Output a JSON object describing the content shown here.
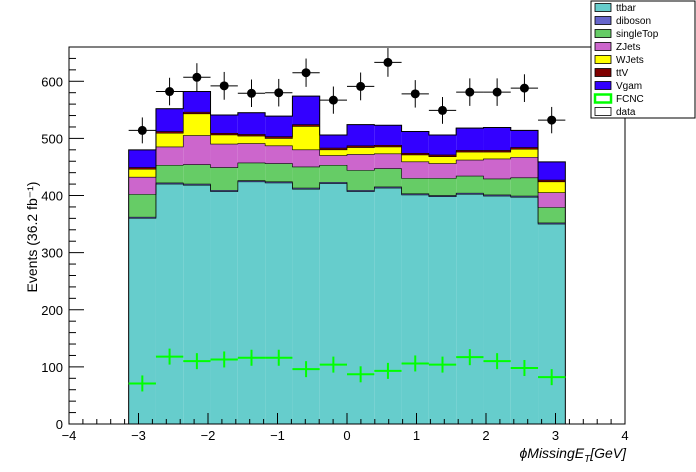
{
  "chart_data": {
    "type": "bar",
    "stacked": true,
    "xlabel": "ϕMissingE_{T}[GeV]",
    "ylabel": "Events (36.2 fb⁻¹)",
    "xlim": [
      -4,
      4
    ],
    "ylim": [
      0,
      660
    ],
    "x_ticks": [
      -4,
      -3,
      -2,
      -1,
      0,
      1,
      2,
      3,
      4
    ],
    "y_ticks": [
      0,
      100,
      200,
      300,
      400,
      500,
      600
    ],
    "bin_edges": [
      -3.1416,
      -2.7489,
      -2.3562,
      -1.9635,
      -1.5708,
      -1.1781,
      -0.7854,
      -0.3927,
      0.0,
      0.3927,
      0.7854,
      1.1781,
      1.5708,
      1.9635,
      2.3562,
      2.7489,
      3.1416
    ],
    "bin_centers": [
      -2.945,
      -2.553,
      -2.16,
      -1.767,
      -1.374,
      -0.982,
      -0.589,
      -0.196,
      0.196,
      0.589,
      0.982,
      1.374,
      1.767,
      2.16,
      2.553,
      2.945
    ],
    "legend_position": "top-right outside",
    "series": [
      {
        "name": "ttbar",
        "color": "#66cdcc",
        "values": [
          360,
          420,
          418,
          407,
          424,
          422,
          411,
          421,
          407,
          413,
          401,
          398,
          402,
          399,
          397,
          350
        ]
      },
      {
        "name": "diboson",
        "color": "#6666cc",
        "values": [
          2,
          2,
          2,
          2,
          2,
          2,
          2,
          2,
          2,
          2,
          2,
          2,
          2,
          2,
          2,
          2
        ]
      },
      {
        "name": "singleTop",
        "color": "#66cc66",
        "values": [
          40,
          31,
          34,
          40,
          31,
          32,
          37,
          30,
          35,
          32,
          27,
          30,
          30,
          28,
          32,
          27
        ]
      },
      {
        "name": "ZJets",
        "color": "#cc66cc",
        "values": [
          30,
          32,
          51,
          41,
          34,
          31,
          30,
          17,
          28,
          26,
          29,
          26,
          28,
          35,
          36,
          26
        ]
      },
      {
        "name": "WJets",
        "color": "#ffff00",
        "values": [
          14,
          24,
          38,
          16,
          13,
          13,
          41,
          10,
          12,
          12,
          12,
          12,
          14,
          12,
          14,
          19
        ]
      },
      {
        "name": "ttV",
        "color": "#7f0000",
        "values": [
          3,
          3,
          3,
          3,
          3,
          3,
          3,
          3,
          3,
          3,
          3,
          3,
          3,
          3,
          3,
          3
        ]
      },
      {
        "name": "Vgam",
        "color": "#3300ff",
        "values": [
          31,
          40,
          36,
          32,
          38,
          36,
          50,
          23,
          37,
          35,
          38,
          35,
          39,
          40,
          30,
          32
        ]
      }
    ],
    "overlays": [
      {
        "name": "FCNC",
        "color": "#00ff00",
        "values": [
          71,
          118,
          110,
          113,
          116,
          116,
          96,
          104,
          87,
          93,
          106,
          104,
          117,
          110,
          98,
          82
        ]
      },
      {
        "name": "data",
        "color": "#000000",
        "values": [
          514,
          582,
          607,
          592,
          579,
          580,
          615,
          567,
          591,
          633,
          578,
          549,
          581,
          581,
          588,
          532
        ]
      }
    ],
    "legend": [
      {
        "label": "ttbar",
        "fill": "#66cdcc",
        "stroke": "#000000"
      },
      {
        "label": "diboson",
        "fill": "#6666cc",
        "stroke": "#000000"
      },
      {
        "label": "singleTop",
        "fill": "#66cc66",
        "stroke": "#000000"
      },
      {
        "label": "ZJets",
        "fill": "#cc66cc",
        "stroke": "#000000"
      },
      {
        "label": "WJets",
        "fill": "#ffff00",
        "stroke": "#000000"
      },
      {
        "label": "ttV",
        "fill": "#7f0000",
        "stroke": "#000000"
      },
      {
        "label": "Vgam",
        "fill": "#3300ff",
        "stroke": "#000000"
      },
      {
        "label": "FCNC",
        "fill": "#ffffff",
        "stroke": "#00ff00"
      },
      {
        "label": "data",
        "fill": "#ffffff",
        "stroke": "#000000"
      }
    ]
  }
}
